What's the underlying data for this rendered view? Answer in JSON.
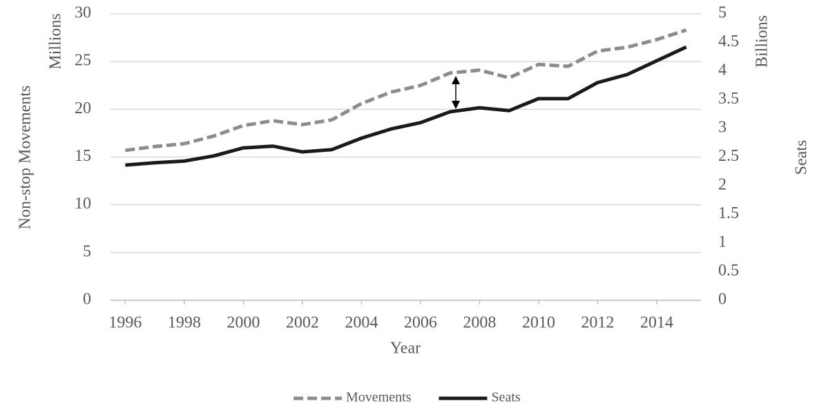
{
  "chart_data": {
    "type": "line",
    "x": [
      1996,
      1997,
      1998,
      1999,
      2000,
      2001,
      2002,
      2003,
      2004,
      2005,
      2006,
      2007,
      2008,
      2009,
      2010,
      2011,
      2012,
      2013,
      2014,
      2015
    ],
    "xlim": [
      1995.5,
      2015.5
    ],
    "xticks": [
      1996,
      1998,
      2000,
      2002,
      2004,
      2006,
      2008,
      2010,
      2012,
      2014
    ],
    "xlabel": "Year",
    "ylabel": "Non-stop Movements",
    "yunit": "Millions",
    "y2label": "Seats",
    "y2unit": "Billions",
    "ylim": [
      0,
      30
    ],
    "yticks": [
      0,
      5,
      10,
      15,
      20,
      25,
      30
    ],
    "y2lim": [
      0,
      5
    ],
    "y2ticks": [
      0,
      0.5,
      1,
      1.5,
      2,
      2.5,
      3,
      3.5,
      4,
      4.5,
      5
    ],
    "grid": true,
    "legend": "bottom",
    "series": [
      {
        "name": "Movements",
        "color": "#8c8c8c",
        "dashed": true,
        "values": [
          15.7,
          16.1,
          16.4,
          17.2,
          18.3,
          18.8,
          18.4,
          18.9,
          20.6,
          21.8,
          22.5,
          23.8,
          24.1,
          23.3,
          24.7,
          24.5,
          26.1,
          26.5,
          27.3,
          28.3
        ]
      },
      {
        "name": "Seats",
        "color": "#1a1a1a",
        "dashed": false,
        "axis": "y2",
        "values": [
          2.36,
          2.4,
          2.43,
          2.52,
          2.66,
          2.69,
          2.59,
          2.63,
          2.83,
          2.99,
          3.1,
          3.29,
          3.36,
          3.31,
          3.52,
          3.52,
          3.8,
          3.94,
          4.18,
          4.42
        ]
      }
    ]
  }
}
